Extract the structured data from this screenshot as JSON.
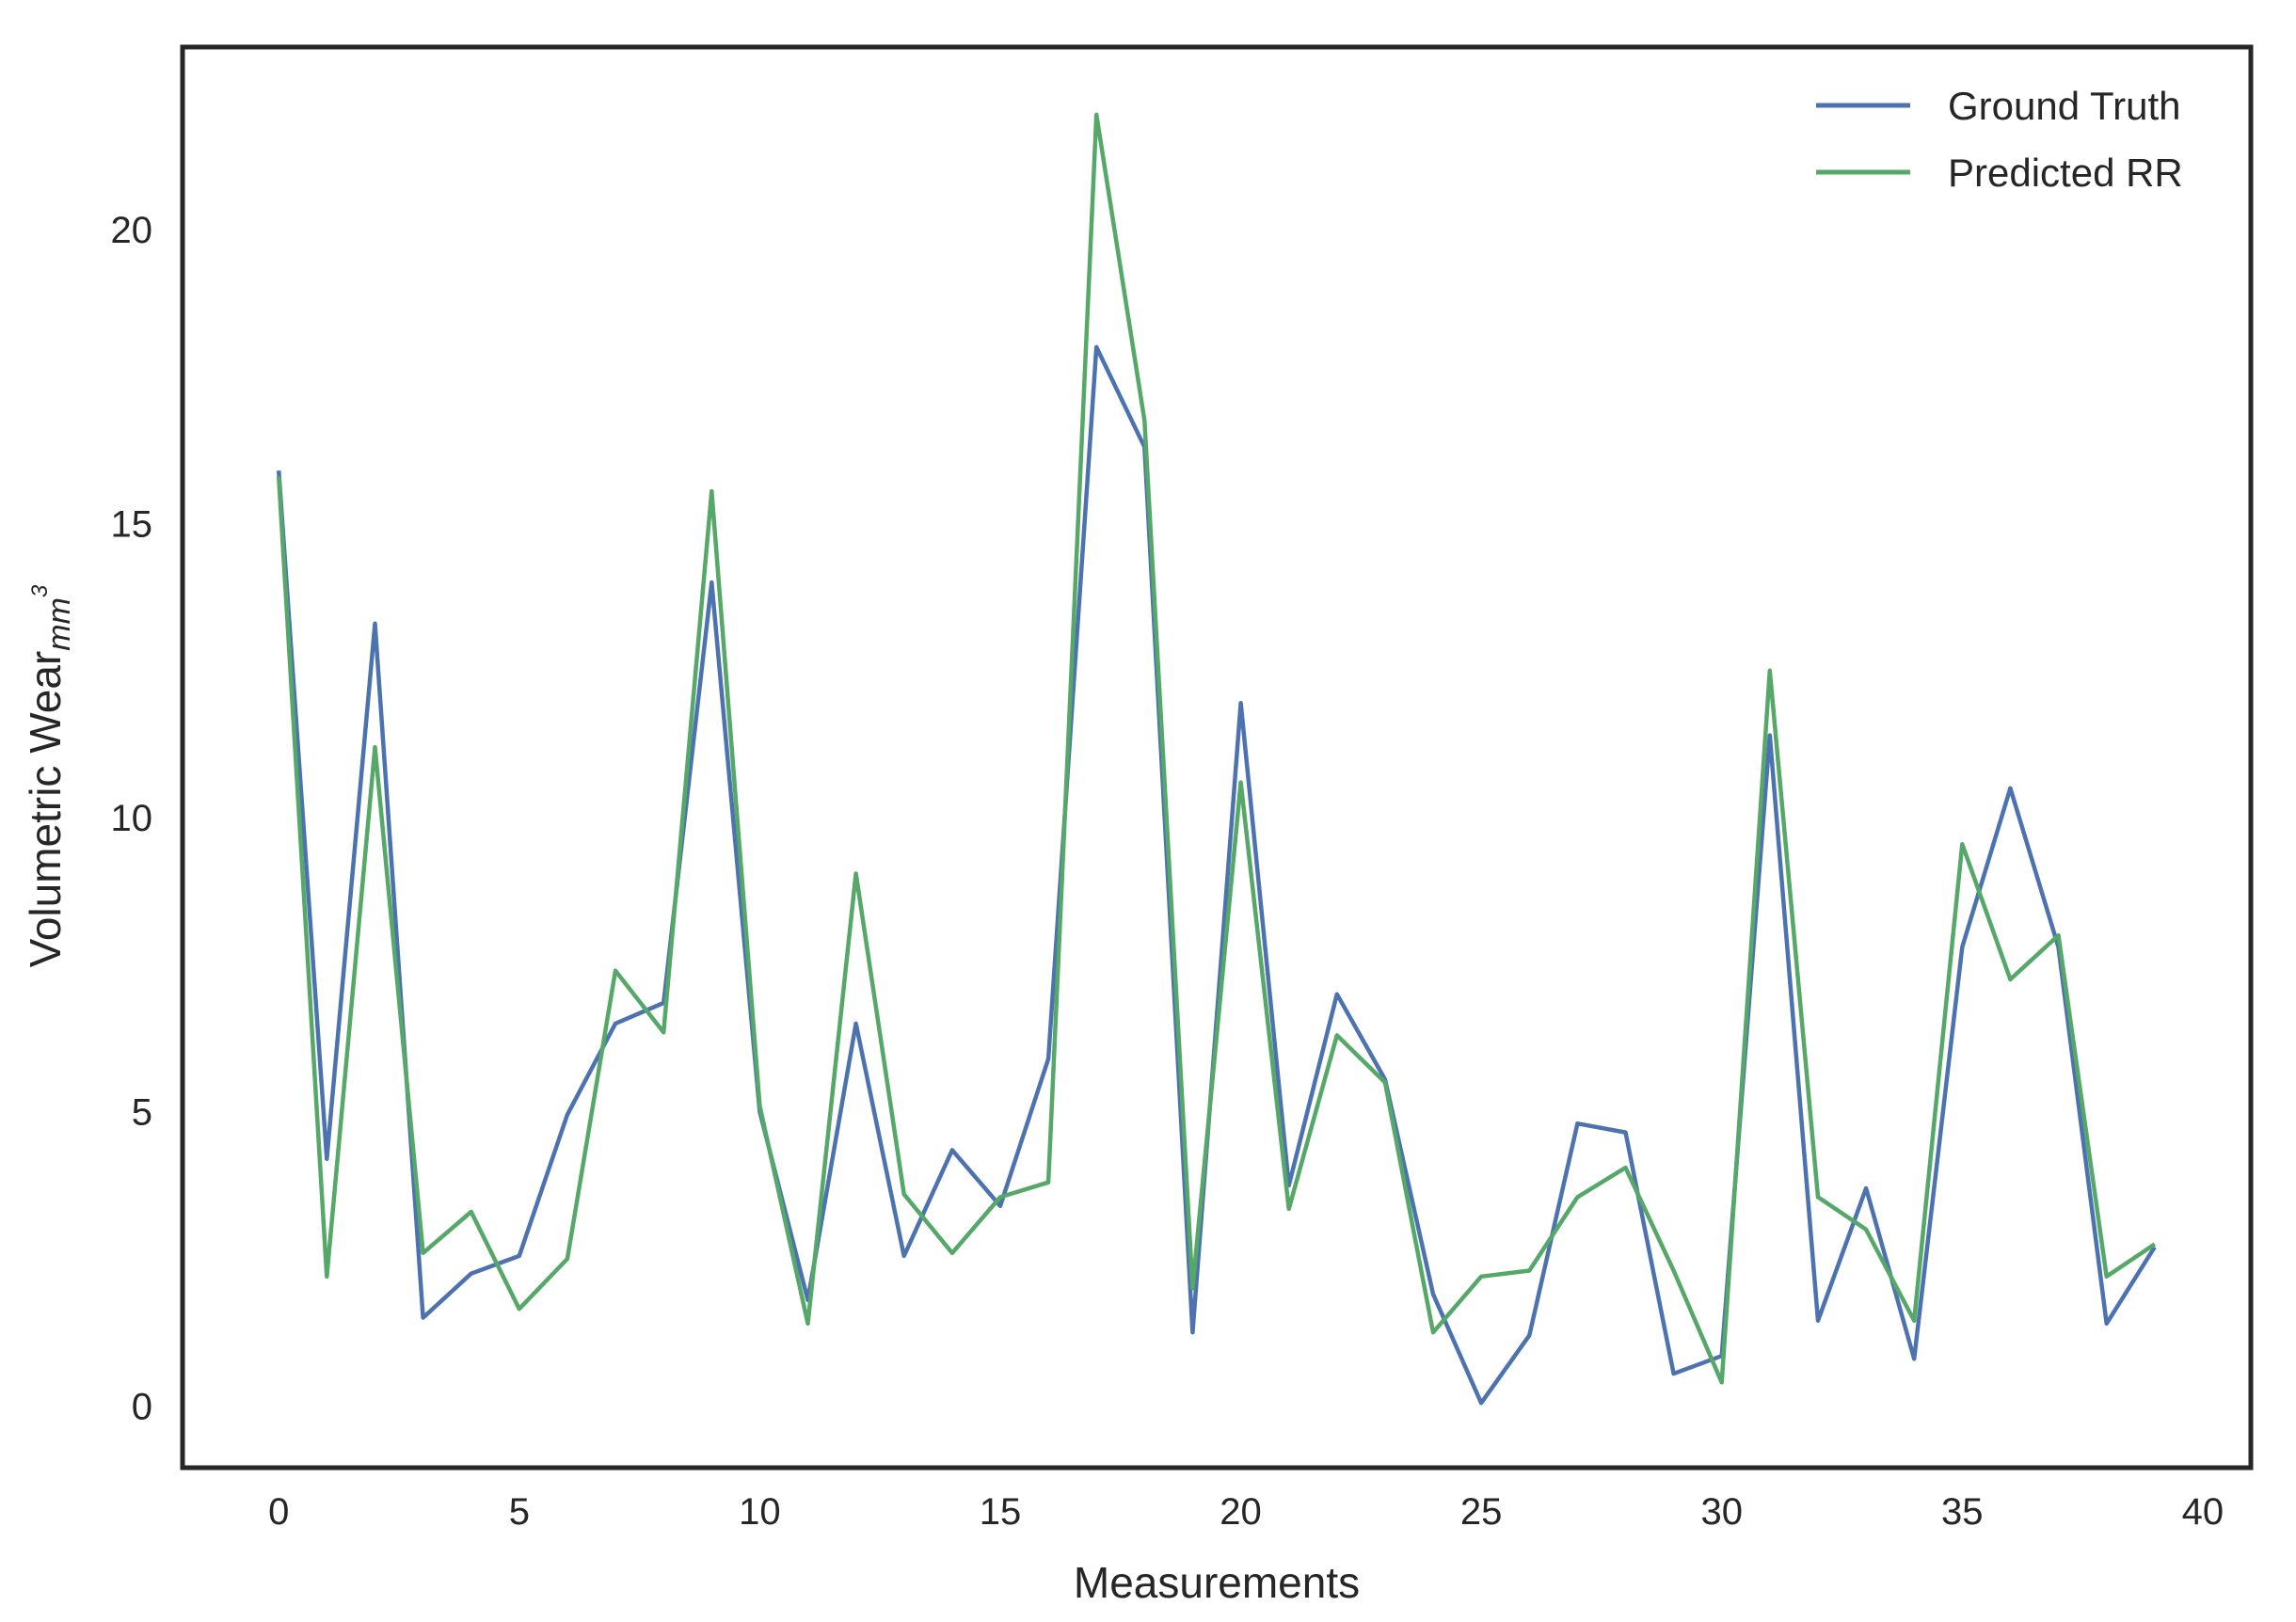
{
  "chart_data": {
    "type": "line",
    "title": "",
    "xlabel": "Measurements",
    "ylabel": "Volumetric Wear",
    "ylabel_subscript": "mm",
    "ylabel_superscript": "3",
    "xlim": [
      -2,
      41
    ],
    "ylim": [
      -1.05,
      23.1
    ],
    "xticks": [
      0,
      5,
      10,
      15,
      20,
      25,
      30,
      35,
      40
    ],
    "yticks": [
      0,
      5,
      10,
      15,
      20
    ],
    "grid": false,
    "legend_position": "top-right",
    "x": [
      0,
      1,
      2,
      3,
      4,
      5,
      6,
      7,
      8,
      9,
      10,
      11,
      12,
      13,
      14,
      15,
      16,
      17,
      18,
      19,
      20,
      21,
      22,
      23,
      24,
      25,
      26,
      27,
      28,
      29,
      30,
      31,
      32,
      33,
      34,
      35,
      36,
      37,
      38,
      39
    ],
    "series": [
      {
        "name": "Ground Truth",
        "color": "#4c72b0",
        "values": [
          15.9,
          4.2,
          13.3,
          1.5,
          2.25,
          2.55,
          4.95,
          6.5,
          6.85,
          14.0,
          5.0,
          1.8,
          6.5,
          2.55,
          4.35,
          3.4,
          5.9,
          18.0,
          16.3,
          1.25,
          11.95,
          3.75,
          7.0,
          5.55,
          1.9,
          0.05,
          1.2,
          4.8,
          4.65,
          0.55,
          0.85,
          11.4,
          1.45,
          3.7,
          0.8,
          7.8,
          10.5,
          7.8,
          1.4,
          2.7
        ]
      },
      {
        "name": "Predicted RR",
        "color": "#55a868",
        "values": [
          15.8,
          2.2,
          11.2,
          2.6,
          3.3,
          1.65,
          2.5,
          7.4,
          6.35,
          15.55,
          5.1,
          1.4,
          9.05,
          3.6,
          2.6,
          3.55,
          3.8,
          21.95,
          16.75,
          2.0,
          10.6,
          3.35,
          6.3,
          5.5,
          1.25,
          2.2,
          2.3,
          3.55,
          4.05,
          2.3,
          0.4,
          12.5,
          3.55,
          3.0,
          1.45,
          9.55,
          7.25,
          8.0,
          2.2,
          2.75
        ]
      }
    ]
  }
}
